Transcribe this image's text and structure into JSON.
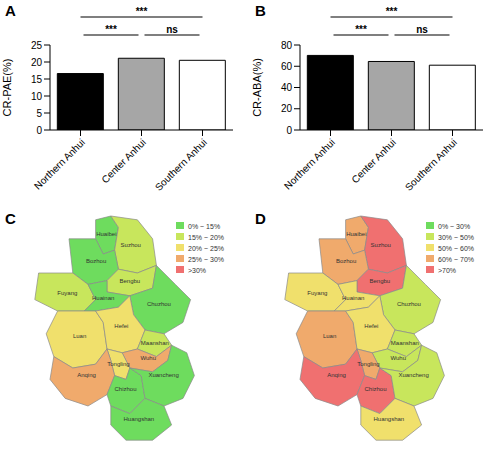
{
  "chart_data": [
    {
      "panel": "A",
      "type": "bar",
      "categories": [
        "Northern Anhui",
        "Center Anhui",
        "Southern Anhui"
      ],
      "values": [
        16.6,
        21.1,
        20.5
      ],
      "colors": [
        "#000000",
        "#a6a6a6",
        "#ffffff"
      ],
      "ylabel": "CR-PAE(%)",
      "ylim": [
        0,
        25
      ],
      "yticks": [
        0,
        5,
        10,
        15,
        20,
        25
      ],
      "grid": false,
      "annotations": [
        {
          "from": "Northern Anhui",
          "to": "Center Anhui",
          "label": "***"
        },
        {
          "from": "Northern Anhui",
          "to": "Southern Anhui",
          "label": "***"
        },
        {
          "from": "Center Anhui",
          "to": "Southern Anhui",
          "label": "ns"
        }
      ]
    },
    {
      "panel": "B",
      "type": "bar",
      "categories": [
        "Northern Anhui",
        "Center Anhui",
        "Southern Anhui"
      ],
      "values": [
        70.2,
        64.5,
        61.0
      ],
      "colors": [
        "#000000",
        "#a6a6a6",
        "#ffffff"
      ],
      "ylabel": "CR-ABA(%)",
      "ylim": [
        0,
        80
      ],
      "yticks": [
        0,
        20,
        40,
        60,
        80
      ],
      "grid": false,
      "annotations": [
        {
          "from": "Northern Anhui",
          "to": "Center Anhui",
          "label": "***"
        },
        {
          "from": "Northern Anhui",
          "to": "Southern Anhui",
          "label": "***"
        },
        {
          "from": "Center Anhui",
          "to": "Southern Anhui",
          "label": "ns"
        }
      ]
    },
    {
      "panel": "C",
      "type": "map",
      "legend": "upper right",
      "legend_bins": [
        {
          "label": "0% ~ 15%",
          "color": "#6edc5e"
        },
        {
          "label": "15% ~ 20%",
          "color": "#c8e65c"
        },
        {
          "label": "20% ~ 25%",
          "color": "#f0e06c"
        },
        {
          "label": "25% ~ 30%",
          "color": "#f0aa6c"
        },
        {
          "label": ">30%",
          "color": "#f07070"
        }
      ],
      "regions": [
        {
          "name": "Huaibei",
          "bin": "0% ~ 15%"
        },
        {
          "name": "Suzhou",
          "bin": "15% ~ 20%"
        },
        {
          "name": "Bozhou",
          "bin": "0% ~ 15%"
        },
        {
          "name": "Fuyang",
          "bin": "15% ~ 20%"
        },
        {
          "name": "Bengbu",
          "bin": "15% ~ 20%"
        },
        {
          "name": "Huainan",
          "bin": "0% ~ 15%"
        },
        {
          "name": "Chuzhou",
          "bin": "0% ~ 15%"
        },
        {
          "name": "Luan",
          "bin": "20% ~ 25%"
        },
        {
          "name": "Hefei",
          "bin": "20% ~ 25%"
        },
        {
          "name": "Maanshan",
          "bin": "15% ~ 20%"
        },
        {
          "name": "Wuhu",
          "bin": "25% ~ 30%"
        },
        {
          "name": "Tongling",
          "bin": "20% ~ 25%"
        },
        {
          "name": "Anqing",
          "bin": "25% ~ 30%"
        },
        {
          "name": "Chizhou",
          "bin": "0% ~ 15%"
        },
        {
          "name": "Xuancheng",
          "bin": "0% ~ 15%"
        },
        {
          "name": "Huangshan",
          "bin": "0% ~ 15%"
        }
      ]
    },
    {
      "panel": "D",
      "type": "map",
      "legend": "upper right",
      "legend_bins": [
        {
          "label": "0% ~ 30%",
          "color": "#6edc5e"
        },
        {
          "label": "30% ~ 50%",
          "color": "#c8e65c"
        },
        {
          "label": "50% ~ 60%",
          "color": "#f0e06c"
        },
        {
          "label": "60% ~ 70%",
          "color": "#f0aa6c"
        },
        {
          "label": ">70%",
          "color": "#f07070"
        }
      ],
      "regions": [
        {
          "name": "Huaibei",
          "bin": "60% ~ 70%"
        },
        {
          "name": "Suzhou",
          "bin": ">70%"
        },
        {
          "name": "Bozhou",
          "bin": "60% ~ 70%"
        },
        {
          "name": "Fuyang",
          "bin": "50% ~ 60%"
        },
        {
          "name": "Bengbu",
          "bin": ">70%"
        },
        {
          "name": "Huainan",
          "bin": "50% ~ 60%"
        },
        {
          "name": "Chuzhou",
          "bin": "30% ~ 50%"
        },
        {
          "name": "Luan",
          "bin": "60% ~ 70%"
        },
        {
          "name": "Hefei",
          "bin": "50% ~ 60%"
        },
        {
          "name": "Maanshan",
          "bin": "30% ~ 50%"
        },
        {
          "name": "Wuhu",
          "bin": "30% ~ 50%"
        },
        {
          "name": "Tongling",
          "bin": "60% ~ 70%"
        },
        {
          "name": "Anqing",
          "bin": ">70%"
        },
        {
          "name": "Chizhou",
          "bin": ">70%"
        },
        {
          "name": "Xuancheng",
          "bin": "30% ~ 50%"
        },
        {
          "name": "Huangshan",
          "bin": "50% ~ 60%"
        }
      ]
    }
  ]
}
